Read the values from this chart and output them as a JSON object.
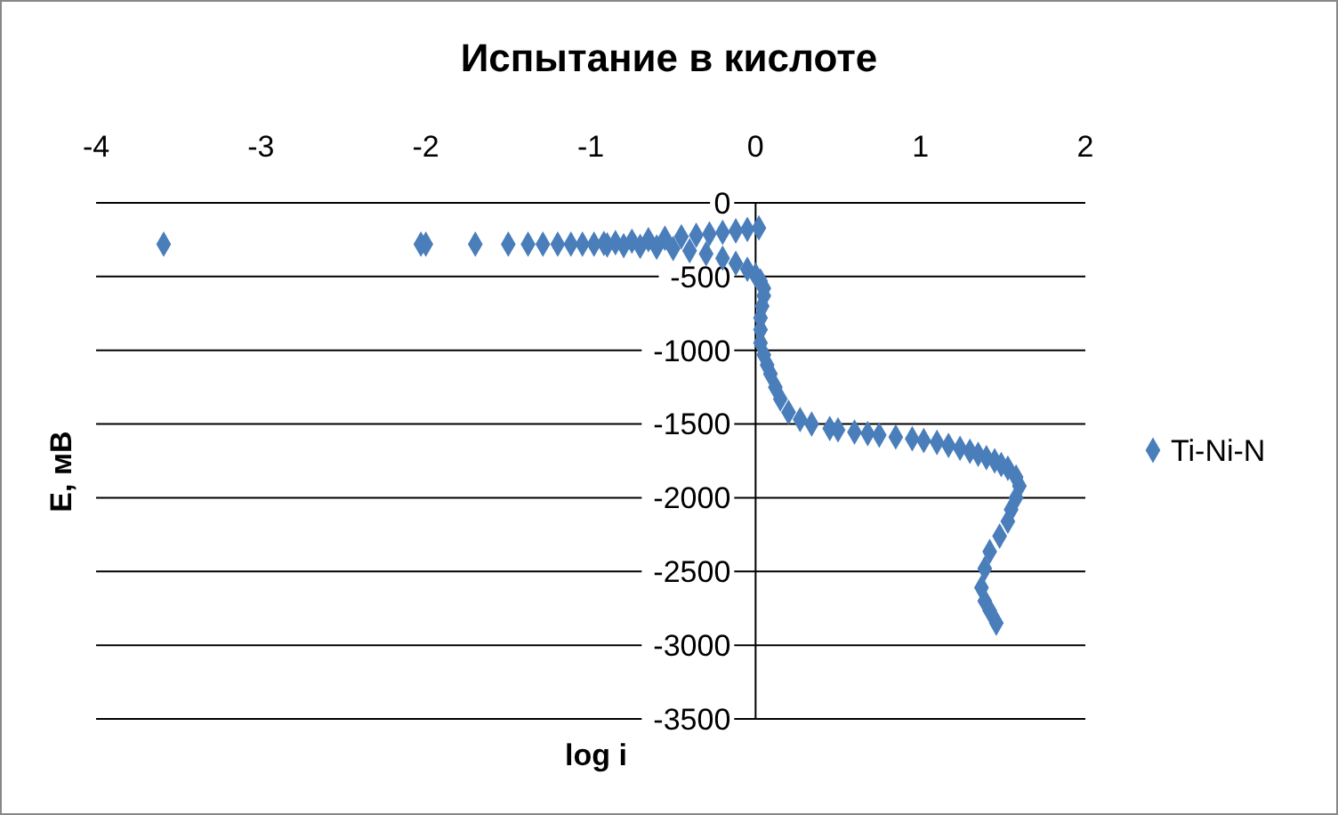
{
  "chart_data": {
    "type": "scatter",
    "title": "Испытание в кислоте",
    "xlabel": "log i",
    "ylabel": "E, мВ",
    "xlim": [
      -4,
      2
    ],
    "xticks": [
      -4,
      -3,
      -2,
      -1,
      0,
      1,
      2
    ],
    "ylim": [
      -3500,
      0
    ],
    "yticks": [
      0,
      -500,
      -1000,
      -1500,
      -2000,
      -2500,
      -3000,
      -3500
    ],
    "grid": "y",
    "legend": "right",
    "marker": "diamond",
    "series": [
      {
        "name": "Ti-Ni-N",
        "color": "#4a7ebb",
        "x": [
          0.02,
          -0.05,
          -0.12,
          -0.2,
          -0.28,
          -0.36,
          -0.45,
          -0.55,
          -0.65,
          -0.75,
          -0.85,
          -0.92,
          -0.98,
          -1.05,
          -1.12,
          -1.2,
          -1.29,
          -1.38,
          -1.5,
          -1.7,
          -2.0,
          -2.03,
          -3.59,
          -0.9,
          -0.8,
          -0.7,
          -0.6,
          -0.5,
          -0.4,
          -0.3,
          -0.2,
          -0.12,
          -0.05,
          0.0,
          0.03,
          0.05,
          0.05,
          0.04,
          0.03,
          0.03,
          0.03,
          0.05,
          0.07,
          0.09,
          0.12,
          0.15,
          0.2,
          0.27,
          0.34,
          0.45,
          0.5,
          0.6,
          0.68,
          0.75,
          0.85,
          0.95,
          1.02,
          1.1,
          1.17,
          1.24,
          1.3,
          1.35,
          1.4,
          1.45,
          1.49,
          1.53,
          1.58,
          1.6,
          1.58,
          1.55,
          1.53,
          1.48,
          1.42,
          1.39,
          1.37,
          1.39,
          1.42,
          1.46
        ],
        "values": [
          -170,
          -180,
          -190,
          -200,
          -210,
          -220,
          -230,
          -240,
          -250,
          -260,
          -270,
          -275,
          -280,
          -280,
          -280,
          -280,
          -280,
          -280,
          -280,
          -280,
          -280,
          -280,
          -280,
          -285,
          -290,
          -295,
          -300,
          -310,
          -325,
          -345,
          -375,
          -410,
          -450,
          -490,
          -530,
          -580,
          -630,
          -700,
          -780,
          -860,
          -950,
          -1030,
          -1100,
          -1160,
          -1250,
          -1330,
          -1420,
          -1470,
          -1500,
          -1530,
          -1540,
          -1555,
          -1565,
          -1575,
          -1588,
          -1600,
          -1612,
          -1625,
          -1645,
          -1665,
          -1685,
          -1705,
          -1728,
          -1750,
          -1775,
          -1800,
          -1860,
          -1920,
          -2000,
          -2080,
          -2160,
          -2260,
          -2365,
          -2480,
          -2610,
          -2700,
          -2765,
          -2850
        ]
      }
    ]
  }
}
